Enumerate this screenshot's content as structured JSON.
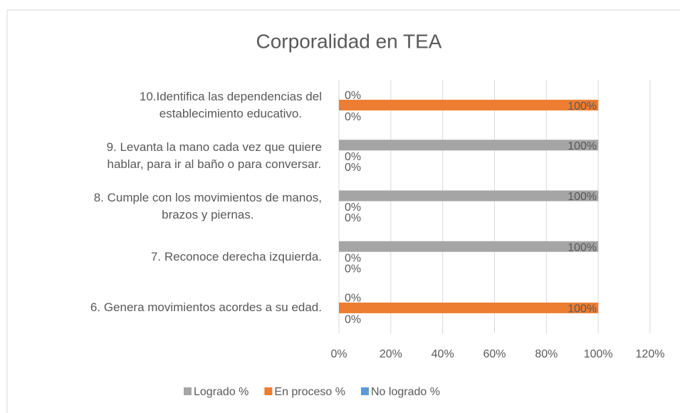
{
  "chart_data": {
    "type": "bar",
    "orientation": "horizontal",
    "title": "Corporalidad en TEA",
    "categories": [
      "10.Identifica las dependencias del\nestablecimiento educativo.",
      "9.   Levanta la mano cada vez que quiere\nhablar, para ir al baño o para conversar.",
      "8.   Cumple con los movimientos de manos,\nbrazos y piernas.",
      "7.   Reconoce derecha izquierda.",
      "6.   Genera movimientos acordes a su edad."
    ],
    "series": [
      {
        "name": "Logrado %",
        "color": "#a5a5a5",
        "values": [
          0,
          100,
          100,
          100,
          0
        ],
        "value_labels": [
          "0%",
          "100%",
          "100%",
          "100%",
          "0%"
        ]
      },
      {
        "name": "En proceso %",
        "color": "#ed7d31",
        "values": [
          100,
          0,
          0,
          0,
          100
        ],
        "value_labels": [
          "100%",
          "0%",
          "0%",
          "0%",
          "100%"
        ]
      },
      {
        "name": "No logrado %",
        "color": "#5b9bd5",
        "values": [
          0,
          0,
          0,
          0,
          0
        ],
        "value_labels": [
          "0%",
          "0%",
          "0%",
          "0%",
          "0%"
        ]
      }
    ],
    "xlim": [
      0,
      120
    ],
    "xticks": [
      {
        "value": 0,
        "label": "0%"
      },
      {
        "value": 20,
        "label": "20%"
      },
      {
        "value": 40,
        "label": "40%"
      },
      {
        "value": 60,
        "label": "60%"
      },
      {
        "value": 80,
        "label": "80%"
      },
      {
        "value": 100,
        "label": "100%"
      },
      {
        "value": 120,
        "label": "120%"
      }
    ],
    "grid": true,
    "legend": "bottom"
  }
}
